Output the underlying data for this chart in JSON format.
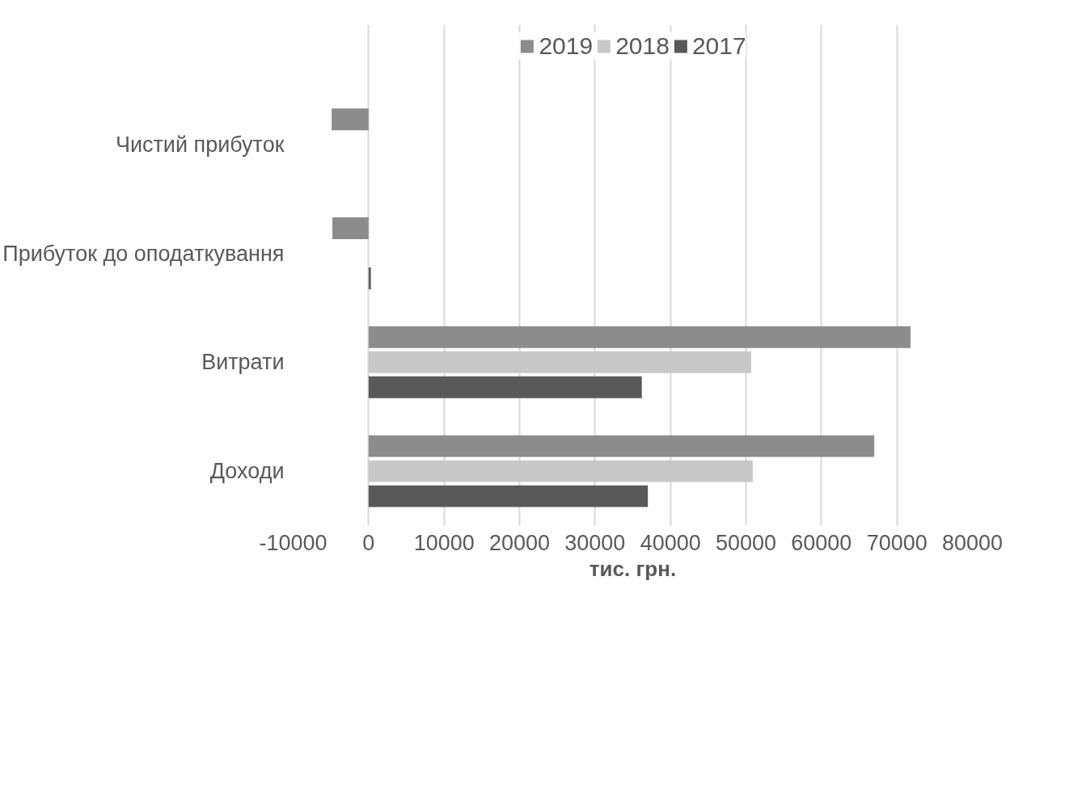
{
  "chart_data": {
    "type": "bar",
    "orientation": "horizontal",
    "xlabel": "тис. грн.",
    "categories": [
      "Чистий прибуток",
      "Прибуток до оподаткування",
      "Витрати",
      "Доходи"
    ],
    "series": [
      {
        "name": "2019",
        "color": "#8c8c8c",
        "values": [
          -4900,
          -4800,
          71800,
          67000
        ]
      },
      {
        "name": "2018",
        "color": "#c8c8c8",
        "values": [
          null,
          null,
          50700,
          50900
        ]
      },
      {
        "name": "2017",
        "color": "#595959",
        "values": [
          null,
          300,
          36200,
          37000
        ]
      }
    ],
    "xlim": [
      -10000,
      80000
    ],
    "xticks": [
      -10000,
      0,
      10000,
      20000,
      30000,
      40000,
      50000,
      60000,
      70000,
      80000
    ],
    "grid": "x",
    "legend": "top"
  }
}
